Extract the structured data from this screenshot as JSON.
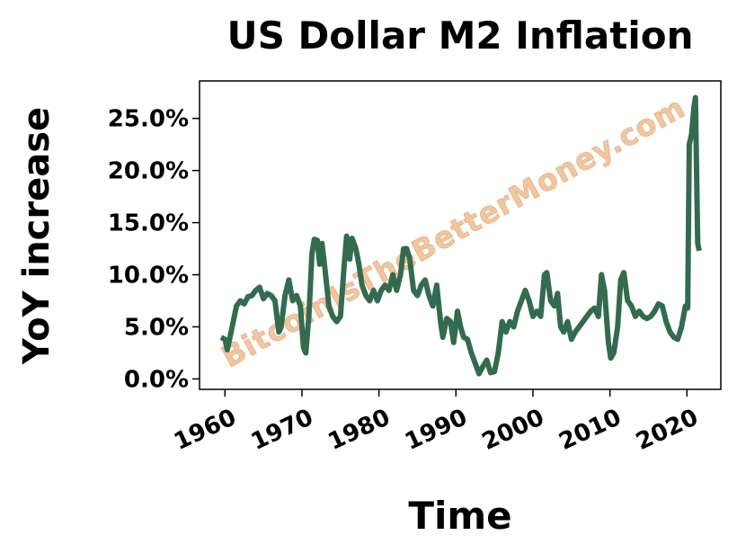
{
  "chart_data": {
    "type": "line",
    "title": "US Dollar M2 Inflation",
    "xlabel": "Time",
    "ylabel": "YoY increase",
    "watermark": "BitcoinIsTheBetterMoney.com",
    "x": [
      1959.5,
      1960,
      1960.3,
      1960.8,
      1961.5,
      1962,
      1962.5,
      1963,
      1963.5,
      1964,
      1964.5,
      1965,
      1965.5,
      1966,
      1966.5,
      1967,
      1967.3,
      1967.8,
      1968.3,
      1968.8,
      1969.3,
      1969.8,
      1970.2,
      1970.5,
      1970.9,
      1971.3,
      1971.6,
      1972,
      1972.3,
      1972.6,
      1973,
      1973.5,
      1974,
      1974.5,
      1975,
      1975.5,
      1975.8,
      1976.2,
      1976.5,
      1977,
      1977.4,
      1977.8,
      1978.3,
      1978.8,
      1979.3,
      1979.8,
      1980.3,
      1980.8,
      1981.3,
      1981.8,
      1982.3,
      1982.8,
      1983.2,
      1983.6,
      1984,
      1984.5,
      1985,
      1985.5,
      1986,
      1986.5,
      1987,
      1987.5,
      1988,
      1988.3,
      1988.8,
      1989.3,
      1989.7,
      1990.2,
      1990.6,
      1991,
      1991.5,
      1992,
      1992.5,
      1993,
      1993.5,
      1994,
      1994.5,
      1995,
      1995.5,
      1996,
      1996.5,
      1997,
      1997.5,
      1998,
      1998.5,
      1999,
      1999.5,
      2000,
      2000.5,
      2001,
      2001.5,
      2001.8,
      2002.3,
      2002.8,
      2003.2,
      2003.6,
      2004,
      2004.5,
      2005,
      2005.5,
      2006,
      2006.5,
      2007,
      2007.5,
      2008,
      2008.5,
      2008.9,
      2009.3,
      2009.8,
      2010.1,
      2010.5,
      2011,
      2011.4,
      2011.8,
      2012.3,
      2012.8,
      2013.3,
      2013.8,
      2014.3,
      2014.8,
      2015.3,
      2015.8,
      2016.3,
      2016.8,
      2017.3,
      2017.8,
      2018.3,
      2018.8,
      2019.3,
      2019.8,
      2020.1,
      2020.3,
      2020.6,
      2020.9,
      2021.1,
      2021.4,
      2021.6
    ],
    "series": [
      {
        "name": "M2",
        "color": "#336b4f",
        "values": [
          4.0,
          3.8,
          2.8,
          4.5,
          7.0,
          7.5,
          7.2,
          7.9,
          8.0,
          8.5,
          8.8,
          7.7,
          8.2,
          8.0,
          7.5,
          4.5,
          5.0,
          8.0,
          9.5,
          7.5,
          8.0,
          7.0,
          3.0,
          2.5,
          6.0,
          12.0,
          13.4,
          13.3,
          11.0,
          13.0,
          10.5,
          7.0,
          6.0,
          5.5,
          6.0,
          11.0,
          13.7,
          11.5,
          13.5,
          12.5,
          11.0,
          9.0,
          8.0,
          7.5,
          8.5,
          7.5,
          8.5,
          9.0,
          8.5,
          10.0,
          8.5,
          10.0,
          12.5,
          12.5,
          11.5,
          8.5,
          8.0,
          9.0,
          9.5,
          8.0,
          7.0,
          9.0,
          5.5,
          4.0,
          5.8,
          5.5,
          3.5,
          6.5,
          5.0,
          4.0,
          3.8,
          2.5,
          1.5,
          0.5,
          1.2,
          1.8,
          0.6,
          0.7,
          2.5,
          5.5,
          4.5,
          5.5,
          5.0,
          6.5,
          7.5,
          8.5,
          7.5,
          6.0,
          6.5,
          6.0,
          10.0,
          10.2,
          7.5,
          7.0,
          8.2,
          5.0,
          4.5,
          5.5,
          3.8,
          4.5,
          5.0,
          5.5,
          6.0,
          6.5,
          6.8,
          6.0,
          10.0,
          8.5,
          3.5,
          2.0,
          2.5,
          5.0,
          9.5,
          10.2,
          7.5,
          7.0,
          6.0,
          6.5,
          6.0,
          5.8,
          6.0,
          6.5,
          7.2,
          7.0,
          5.5,
          4.5,
          4.0,
          3.8,
          5.0,
          7.0,
          6.8,
          22.5,
          23.5,
          26.0,
          27.0,
          13.0,
          12.3
        ]
      }
    ],
    "xlim": [
      1956.7,
      2024.4
    ],
    "xticks": [
      1960,
      1970,
      1980,
      1990,
      2000,
      2010,
      2020
    ],
    "ylim": [
      -1.0,
      28.6
    ],
    "yticks": [
      {
        "value": 0,
        "label": "0.0%"
      },
      {
        "value": 5,
        "label": "5.0%"
      },
      {
        "value": 10,
        "label": "10.0%"
      },
      {
        "value": 15,
        "label": "15.0%"
      },
      {
        "value": 20,
        "label": "20.0%"
      },
      {
        "value": 25,
        "label": "25.0%"
      }
    ]
  }
}
